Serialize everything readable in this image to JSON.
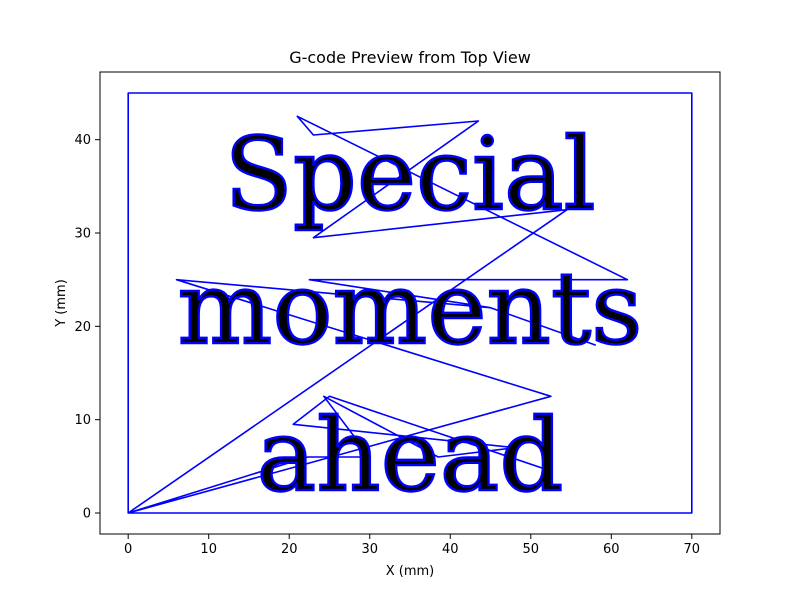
{
  "chart_data": {
    "type": "line",
    "title": "G-code Preview from Top View",
    "xlabel": "X (mm)",
    "ylabel": "Y (mm)",
    "xlim": [
      -3.5,
      73.5
    ],
    "ylim": [
      -2.25,
      47.25
    ],
    "xticks": [
      0,
      10,
      20,
      30,
      40,
      50,
      60,
      70
    ],
    "yticks": [
      0,
      10,
      20,
      30,
      40
    ],
    "grid": false,
    "line_color": "#0000ff",
    "series": [
      {
        "values": [
          [
            0,
            0
          ],
          [
            0,
            45
          ],
          [
            70,
            45
          ],
          [
            70,
            0
          ],
          [
            0,
            0
          ],
          [
            52.5,
            12.5
          ],
          [
            6,
            25
          ],
          [
            45,
            22
          ],
          [
            58,
            18
          ],
          [
            45,
            22
          ],
          [
            22.5,
            25
          ],
          [
            62,
            25
          ],
          [
            21,
            42.5
          ],
          [
            23,
            40.5
          ],
          [
            43.5,
            42
          ],
          [
            23,
            29.5
          ],
          [
            54.5,
            32.5
          ],
          [
            0,
            0
          ],
          [
            22.3,
            6
          ],
          [
            30,
            6
          ],
          [
            24.3,
            12.5
          ],
          [
            38.5,
            6
          ],
          [
            48,
            7
          ],
          [
            20.5,
            9.5
          ],
          [
            25,
            12.5
          ],
          [
            52.5,
            4.5
          ]
        ]
      }
    ],
    "text_strokes": [
      "Special",
      "moments",
      "ahead"
    ]
  }
}
